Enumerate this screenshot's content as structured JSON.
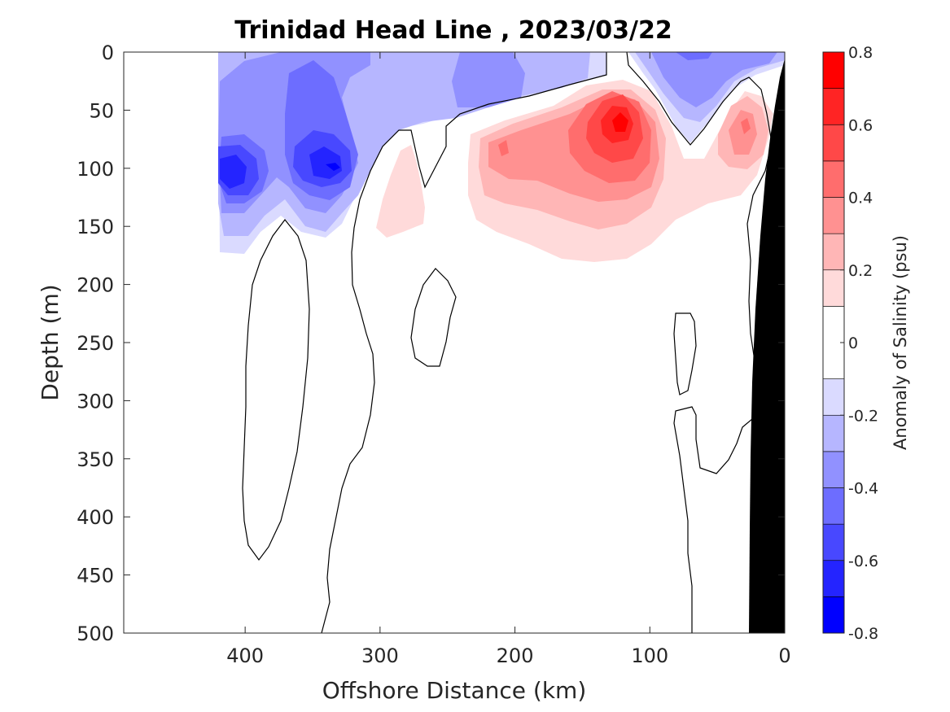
{
  "chart_data": {
    "type": "heatmap",
    "title": "Trinidad Head Line , 2023/03/22",
    "xlabel": "Offshore Distance (km)",
    "ylabel": "Depth (m)",
    "xlim": [
      490,
      0
    ],
    "ylim": [
      0,
      500
    ],
    "x_reversed": true,
    "y_reversed": true,
    "xticks": [
      400,
      300,
      200,
      100,
      0
    ],
    "yticks": [
      0,
      50,
      100,
      150,
      200,
      250,
      300,
      350,
      400,
      450,
      500
    ],
    "colorbar": {
      "label": "Anomaly of Salinity (psu)",
      "range": [
        -0.8,
        0.8
      ],
      "ticks": [
        -0.8,
        -0.6,
        -0.4,
        -0.2,
        0,
        0.2,
        0.4,
        0.6,
        0.8
      ],
      "levels": [
        -0.8,
        -0.7,
        -0.6,
        -0.5,
        -0.4,
        -0.3,
        -0.2,
        -0.1,
        0.1,
        0.2,
        0.3,
        0.4,
        0.5,
        0.6,
        0.7,
        0.8
      ],
      "colors": [
        "#0000ff",
        "#2424ff",
        "#4848ff",
        "#6d6dff",
        "#9191ff",
        "#b6b6ff",
        "#dadaff",
        "#ffffff",
        "#ffdada",
        "#ffb6b6",
        "#ff9191",
        "#ff6d6d",
        "#ff4848",
        "#ff2424",
        "#ff0000"
      ]
    },
    "features": {
      "fresh_anomaly_min": {
        "x": 410,
        "depth": 105,
        "value": -0.7
      },
      "fresh_anomaly_second": {
        "x": 335,
        "depth": 100,
        "value": -0.7
      },
      "salty_anomaly_max": {
        "x": 122,
        "depth": 62,
        "value": 0.7
      },
      "salty_anomaly_secondary": {
        "x": 210,
        "depth": 85,
        "value": 0.4
      },
      "salty_anomaly_nearshore": {
        "x": 28,
        "depth": 65,
        "value": 0.4
      }
    },
    "zero_contour": true,
    "grid": false,
    "bathymetry_color": "#000000"
  }
}
